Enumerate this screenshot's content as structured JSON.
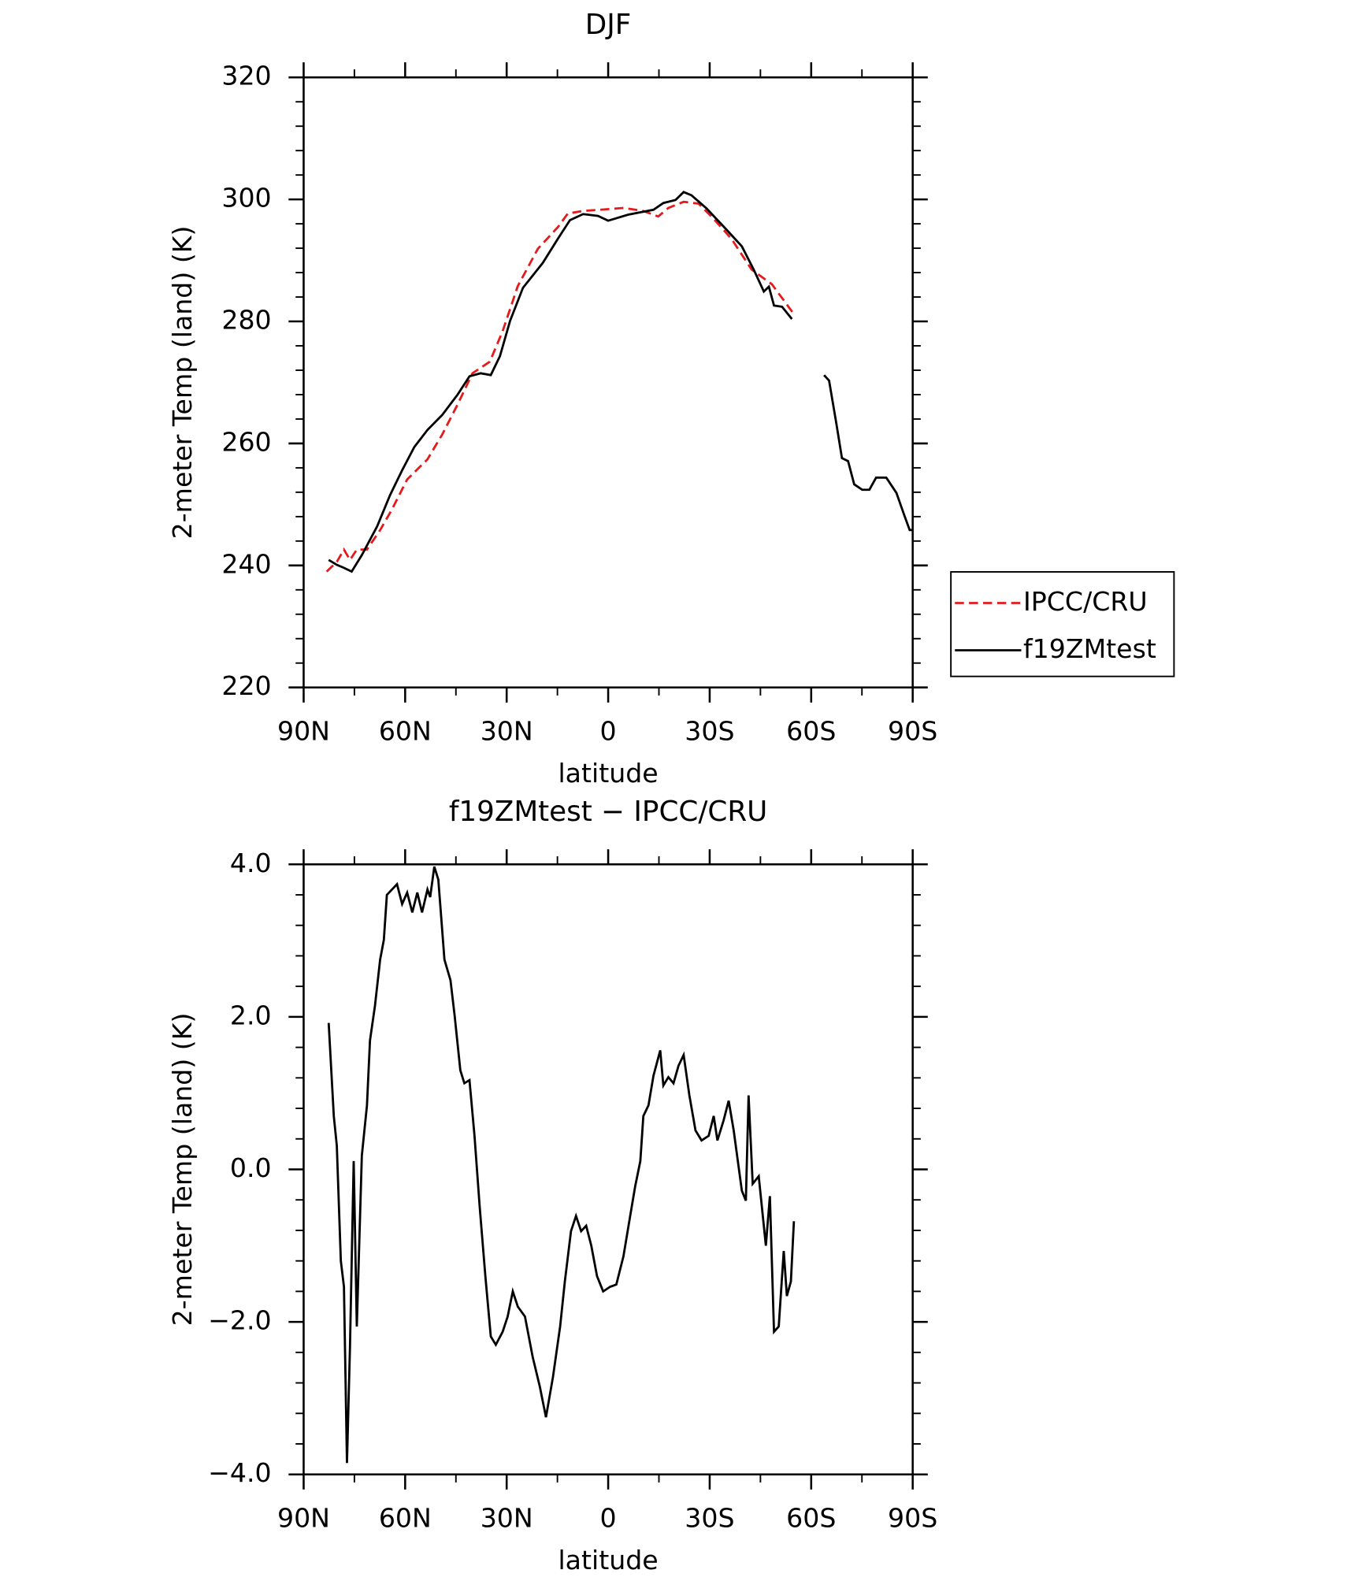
{
  "chart_data": [
    {
      "type": "line",
      "title": "DJF",
      "x_label": "latitude",
      "y_label": "2-meter Temp (land) (K)",
      "xlim": [
        90,
        -90
      ],
      "ylim": [
        220,
        320
      ],
      "xticks": [
        {
          "value": 90,
          "label": "90N"
        },
        {
          "value": 60,
          "label": "60N"
        },
        {
          "value": 30,
          "label": "30N"
        },
        0,
        {
          "value": -30,
          "label": "30S"
        },
        {
          "value": -60,
          "label": "60S"
        },
        {
          "value": -90,
          "label": "90S"
        }
      ],
      "yticks": [
        220,
        240,
        260,
        280,
        300,
        320
      ],
      "legend": "right",
      "series": [
        {
          "name": "IPCC/CRU",
          "color": "#e41a1c",
          "line_style": "dashed",
          "x": [
            83.2,
            80.2,
            78.1,
            76.3,
            74.3,
            71.3,
            67.4,
            63.9,
            59.4,
            53.4,
            49,
            44.5,
            40.1,
            35,
            31.2,
            26.7,
            20.8,
            14.8,
            11.9,
            7.4,
            0,
            -4.5,
            -10.4,
            -14.8,
            -17.8,
            -22.3,
            -26.7,
            -31.2,
            -36.5,
            -42.4,
            -48.4,
            -54.9
          ],
          "values": [
            239,
            240.6,
            242.6,
            240.9,
            242.6,
            242.6,
            245.8,
            249.2,
            254.1,
            257.4,
            261.5,
            266.4,
            271.5,
            273.4,
            278.4,
            285.8,
            291.9,
            295.5,
            297.7,
            298.1,
            298.4,
            298.6,
            298.1,
            297.2,
            298.6,
            299.6,
            299.3,
            296.8,
            293.5,
            288.5,
            286.1,
            281.2
          ]
        },
        {
          "name": "f19ZMtest",
          "color": "#000000",
          "line_style": "solid",
          "x": [
            82.6,
            80.2,
            78.1,
            75.8,
            72.8,
            68.3,
            64.5,
            60.9,
            57.3,
            53.4,
            49,
            44.5,
            41,
            37.7,
            34.7,
            32,
            29,
            25.2,
            19.3,
            14.8,
            11.3,
            7.4,
            3,
            0,
            -5.9,
            -13.4,
            -16.3,
            -19.9,
            -22.3,
            -24.6,
            -29.1,
            -34.7,
            -39.5,
            -43,
            -46,
            -47.5,
            -49,
            -51.4,
            -54.3,
            -60,
            -63.8,
            -65.3,
            -67.4,
            -69.1,
            -70.9,
            -72.7,
            -75.1,
            -77.2,
            -79.2,
            -82.2,
            -85.2,
            -87.6,
            -89.1,
            -90
          ],
          "values": [
            240.9,
            240.1,
            239.6,
            239,
            241.7,
            246.4,
            251.5,
            255.6,
            259.4,
            262.2,
            264.7,
            268,
            271,
            271.5,
            271.2,
            274.3,
            280.1,
            285.5,
            289.6,
            293.6,
            296.6,
            297.6,
            297.3,
            296.5,
            297.5,
            298.3,
            299.4,
            299.9,
            301.2,
            300.7,
            298.5,
            295.2,
            292.3,
            288.5,
            284.9,
            285.7,
            282.6,
            282.4,
            280.4,
            null,
            271.2,
            270.3,
            263.4,
            257.6,
            257.1,
            253.3,
            252.4,
            252.4,
            254.4,
            254.4,
            251.9,
            248.1,
            245.8,
            245.8
          ]
        }
      ]
    },
    {
      "type": "line",
      "title": "f19ZMtest − IPCC/CRU",
      "x_label": "latitude",
      "y_label": "2-meter Temp (land) (K)",
      "xlim": [
        90,
        -90
      ],
      "ylim": [
        -4,
        4
      ],
      "xticks": [
        {
          "value": 90,
          "label": "90N"
        },
        {
          "value": 60,
          "label": "60N"
        },
        {
          "value": 30,
          "label": "30N"
        },
        0,
        {
          "value": -30,
          "label": "30S"
        },
        {
          "value": -60,
          "label": "60S"
        },
        {
          "value": -90,
          "label": "90S"
        }
      ],
      "yticks": [
        {
          "value": -4,
          "label": "−4.0"
        },
        {
          "value": -2,
          "label": "−2.0"
        },
        {
          "value": 0,
          "label": "0.0"
        },
        {
          "value": 2,
          "label": "2.0"
        },
        {
          "value": 4,
          "label": "4.0"
        }
      ],
      "series": [
        {
          "color": "#000000",
          "line_style": "solid",
          "x": [
            82.6,
            81.1,
            80.2,
            79,
            78.1,
            77.2,
            76.3,
            75.2,
            74.3,
            72.8,
            71.3,
            70.4,
            68.9,
            67.4,
            66.3,
            65.4,
            63.9,
            62.4,
            60.9,
            59.4,
            57.9,
            56.4,
            55,
            53.4,
            52.6,
            51.4,
            50.2,
            48.4,
            46.6,
            45.4,
            43.7,
            42.5,
            41,
            39.5,
            38,
            36.3,
            34.7,
            33.2,
            31.2,
            29.7,
            28.2,
            26.7,
            24.6,
            22.3,
            20.2,
            18.4,
            16.3,
            14.2,
            12.8,
            11,
            9.5,
            8,
            6.5,
            5,
            3.3,
            1.5,
            -0.6,
            -2.4,
            -4.5,
            -6.5,
            -8,
            -9.5,
            -10.4,
            -11.9,
            -13.4,
            -15.4,
            -16.3,
            -17.8,
            -19.3,
            -20.8,
            -22.3,
            -24,
            -25.8,
            -27.6,
            -29.7,
            -31.2,
            -32.3,
            -34.1,
            -35.6,
            -37.1,
            -39.5,
            -40.7,
            -41.5,
            -42.7,
            -44.5,
            -46.6,
            -47.8,
            -49,
            -50.4,
            -51.9,
            -52.8,
            -54,
            -54.9
          ],
          "values": [
            1.92,
            0.7,
            0.31,
            -1.2,
            -1.54,
            -3.85,
            -2.33,
            0.11,
            -2.06,
            0.18,
            0.84,
            1.69,
            2.15,
            2.75,
            3.01,
            3.6,
            3.67,
            3.74,
            3.48,
            3.63,
            3.37,
            3.63,
            3.37,
            3.67,
            3.57,
            3.97,
            3.8,
            2.75,
            2.48,
            2.02,
            1.3,
            1.13,
            1.17,
            0.44,
            -0.48,
            -1.4,
            -2.19,
            -2.3,
            -2.13,
            -1.93,
            -1.6,
            -1.8,
            -1.93,
            -2.46,
            -2.85,
            -3.25,
            -2.72,
            -2.06,
            -1.47,
            -0.81,
            -0.61,
            -0.81,
            -0.74,
            -1.0,
            -1.4,
            -1.6,
            -1.54,
            -1.51,
            -1.14,
            -0.61,
            -0.22,
            0.11,
            0.7,
            0.84,
            1.23,
            1.56,
            1.1,
            1.21,
            1.13,
            1.36,
            1.5,
            0.97,
            0.51,
            0.38,
            0.44,
            0.7,
            0.38,
            0.64,
            0.9,
            0.51,
            -0.28,
            -0.41,
            0.97,
            -0.19,
            -0.09,
            -1.0,
            -0.35,
            -2.13,
            -2.06,
            -1.07,
            -1.66,
            -1.47,
            -0.68
          ]
        }
      ]
    }
  ]
}
